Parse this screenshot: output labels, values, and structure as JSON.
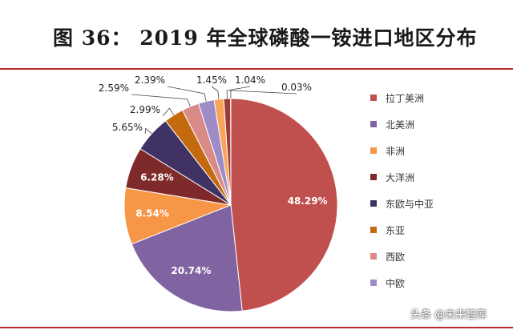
{
  "header": {
    "title": "图 36：  2019 年全球磷酸一铵进口地区分布"
  },
  "watermark": {
    "text": "头条 @未来智库"
  },
  "chart_data": {
    "type": "pie",
    "title": "2019 年全球磷酸一铵进口地区分布",
    "start_angle_deg": 0,
    "direction": "clockwise",
    "slices": [
      {
        "label": "拉丁美洲",
        "value": 48.29,
        "display": "48.29%",
        "color": "#c0504d",
        "label_inside": true
      },
      {
        "label": "北美洲",
        "value": 20.74,
        "display": "20.74%",
        "color": "#8064a2",
        "label_inside": true
      },
      {
        "label": "非洲",
        "value": 8.54,
        "display": "8.54%",
        "color": "#f79646",
        "label_inside": true
      },
      {
        "label": "大洋洲",
        "value": 6.28,
        "display": "6.28%",
        "color": "#7f2a2a",
        "label_inside": true
      },
      {
        "label": "东欧与中亚",
        "value": 5.65,
        "display": "5.65%",
        "color": "#403265",
        "label_inside": false
      },
      {
        "label": "东亚",
        "value": 2.99,
        "display": "2.99%",
        "color": "#c46a0e",
        "label_inside": false
      },
      {
        "label": "西欧",
        "value": 2.59,
        "display": "2.59%",
        "color": "#d98a86",
        "label_inside": false
      },
      {
        "label": "中欧",
        "value": 2.39,
        "display": "2.39%",
        "color": "#9e8cc7",
        "label_inside": false
      },
      {
        "label": "",
        "value": 1.45,
        "display": "1.45%",
        "color": "#f8a45b",
        "label_inside": false
      },
      {
        "label": "",
        "value": 1.04,
        "display": "1.04%",
        "color": "#9d3b39",
        "label_inside": false
      },
      {
        "label": "",
        "value": 0.03,
        "display": "0.03%",
        "color": "#4f81bd",
        "label_inside": false
      }
    ],
    "legend": {
      "position": "right",
      "entries": [
        {
          "label": "拉丁美洲",
          "color": "#c0504d"
        },
        {
          "label": "北美洲",
          "color": "#8064a2"
        },
        {
          "label": "非洲",
          "color": "#f79646"
        },
        {
          "label": "大洋洲",
          "color": "#7f2a2a"
        },
        {
          "label": "东欧与中亚",
          "color": "#403265"
        },
        {
          "label": "东亚",
          "color": "#c46a0e"
        },
        {
          "label": "西欧",
          "color": "#d98a86"
        },
        {
          "label": "中欧",
          "color": "#9e8cc7"
        }
      ]
    }
  }
}
